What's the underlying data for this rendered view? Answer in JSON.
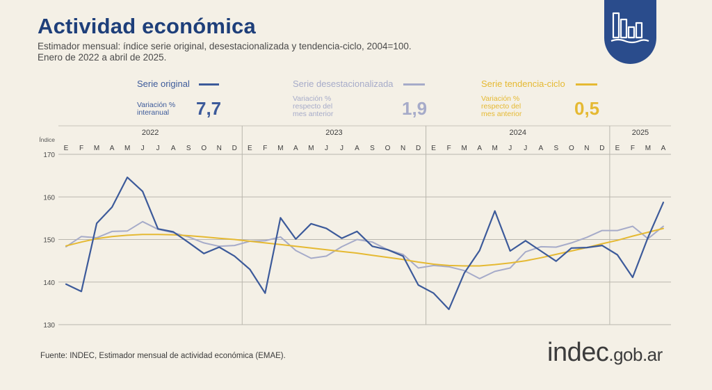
{
  "header": {
    "title": "Actividad económica",
    "subtitle_line1": "Estimador mensual: índice serie original, desestacionalizada y tendencia-ciclo, 2004=100.",
    "subtitle_line2": "Enero de 2022 a abril de 2025."
  },
  "badge_icon": "bar-chart-icon",
  "legend": {
    "original": {
      "label": "Serie original",
      "stat_label_1": "Variación %",
      "stat_label_2": "interanual",
      "stat_value": "7,7",
      "color": "#3c5a9a"
    },
    "desest": {
      "label": "Serie desestacionalizada",
      "stat_label_1": "Variación %",
      "stat_label_2": "respecto del",
      "stat_label_3": "mes anterior",
      "stat_value": "1,9",
      "color": "#a6abc9"
    },
    "tendencia": {
      "label": "Serie tendencia-ciclo",
      "stat_label_1": "Variación %",
      "stat_label_2": "respecto del",
      "stat_label_3": "mes anterior",
      "stat_value": "0,5",
      "color": "#e5b932"
    }
  },
  "chart_data": {
    "type": "line",
    "ylabel": "Índice",
    "ylim": [
      130,
      170
    ],
    "yticks": [
      130,
      140,
      150,
      160,
      170
    ],
    "years": [
      {
        "label": "2022",
        "start": 0,
        "end": 11
      },
      {
        "label": "2023",
        "start": 12,
        "end": 23
      },
      {
        "label": "2024",
        "start": 24,
        "end": 35
      },
      {
        "label": "2025",
        "start": 36,
        "end": 39
      }
    ],
    "categories": [
      "E",
      "F",
      "M",
      "A",
      "M",
      "J",
      "J",
      "A",
      "S",
      "O",
      "N",
      "D",
      "E",
      "F",
      "M",
      "A",
      "M",
      "J",
      "J",
      "A",
      "S",
      "O",
      "N",
      "D",
      "E",
      "F",
      "M",
      "A",
      "M",
      "J",
      "J",
      "A",
      "S",
      "O",
      "N",
      "D",
      "E",
      "F",
      "M",
      "A"
    ],
    "grid": true,
    "series": [
      {
        "name": "Serie original",
        "color": "#3c5a9a",
        "values": [
          139.5,
          137.8,
          153.8,
          157.6,
          164.6,
          161.3,
          152.5,
          151.8,
          149.3,
          146.7,
          148.2,
          146.1,
          143.0,
          137.4,
          155.1,
          150.1,
          153.7,
          152.6,
          150.3,
          151.9,
          148.4,
          147.6,
          146.1,
          139.3,
          137.4,
          133.6,
          142.1,
          147.4,
          156.7,
          147.3,
          149.7,
          147.3,
          144.9,
          148.0,
          148.1,
          148.6,
          146.4,
          141.1,
          150.5,
          158.7
        ]
      },
      {
        "name": "Serie desestacionalizada",
        "color": "#a6abc9",
        "values": [
          148.3,
          150.7,
          150.4,
          151.9,
          152.0,
          154.2,
          152.4,
          151.6,
          150.6,
          149.2,
          148.4,
          148.6,
          149.6,
          149.7,
          150.6,
          147.4,
          145.6,
          146.1,
          148.3,
          150.0,
          149.4,
          147.6,
          146.5,
          143.3,
          143.9,
          143.6,
          142.7,
          140.8,
          142.5,
          143.3,
          147.1,
          148.3,
          148.2,
          149.2,
          150.5,
          152.1,
          152.1,
          153.1,
          150.2,
          153.1
        ]
      },
      {
        "name": "Serie tendencia-ciclo",
        "color": "#e5b932",
        "values": [
          148.5,
          149.4,
          150.2,
          150.7,
          151.0,
          151.2,
          151.2,
          151.1,
          150.9,
          150.6,
          150.3,
          150.0,
          149.6,
          149.2,
          148.8,
          148.4,
          148.0,
          147.6,
          147.2,
          146.8,
          146.3,
          145.8,
          145.3,
          144.7,
          144.2,
          143.9,
          143.8,
          143.8,
          144.1,
          144.5,
          145.0,
          145.7,
          146.5,
          147.3,
          148.1,
          149.0,
          149.8,
          150.8,
          151.7,
          152.6
        ]
      }
    ]
  },
  "footer": {
    "source": "Fuente: INDEC, Estimador mensual de actividad económica (EMAE).",
    "brand_main": "indec",
    "brand_suffix": ".gob.ar"
  }
}
